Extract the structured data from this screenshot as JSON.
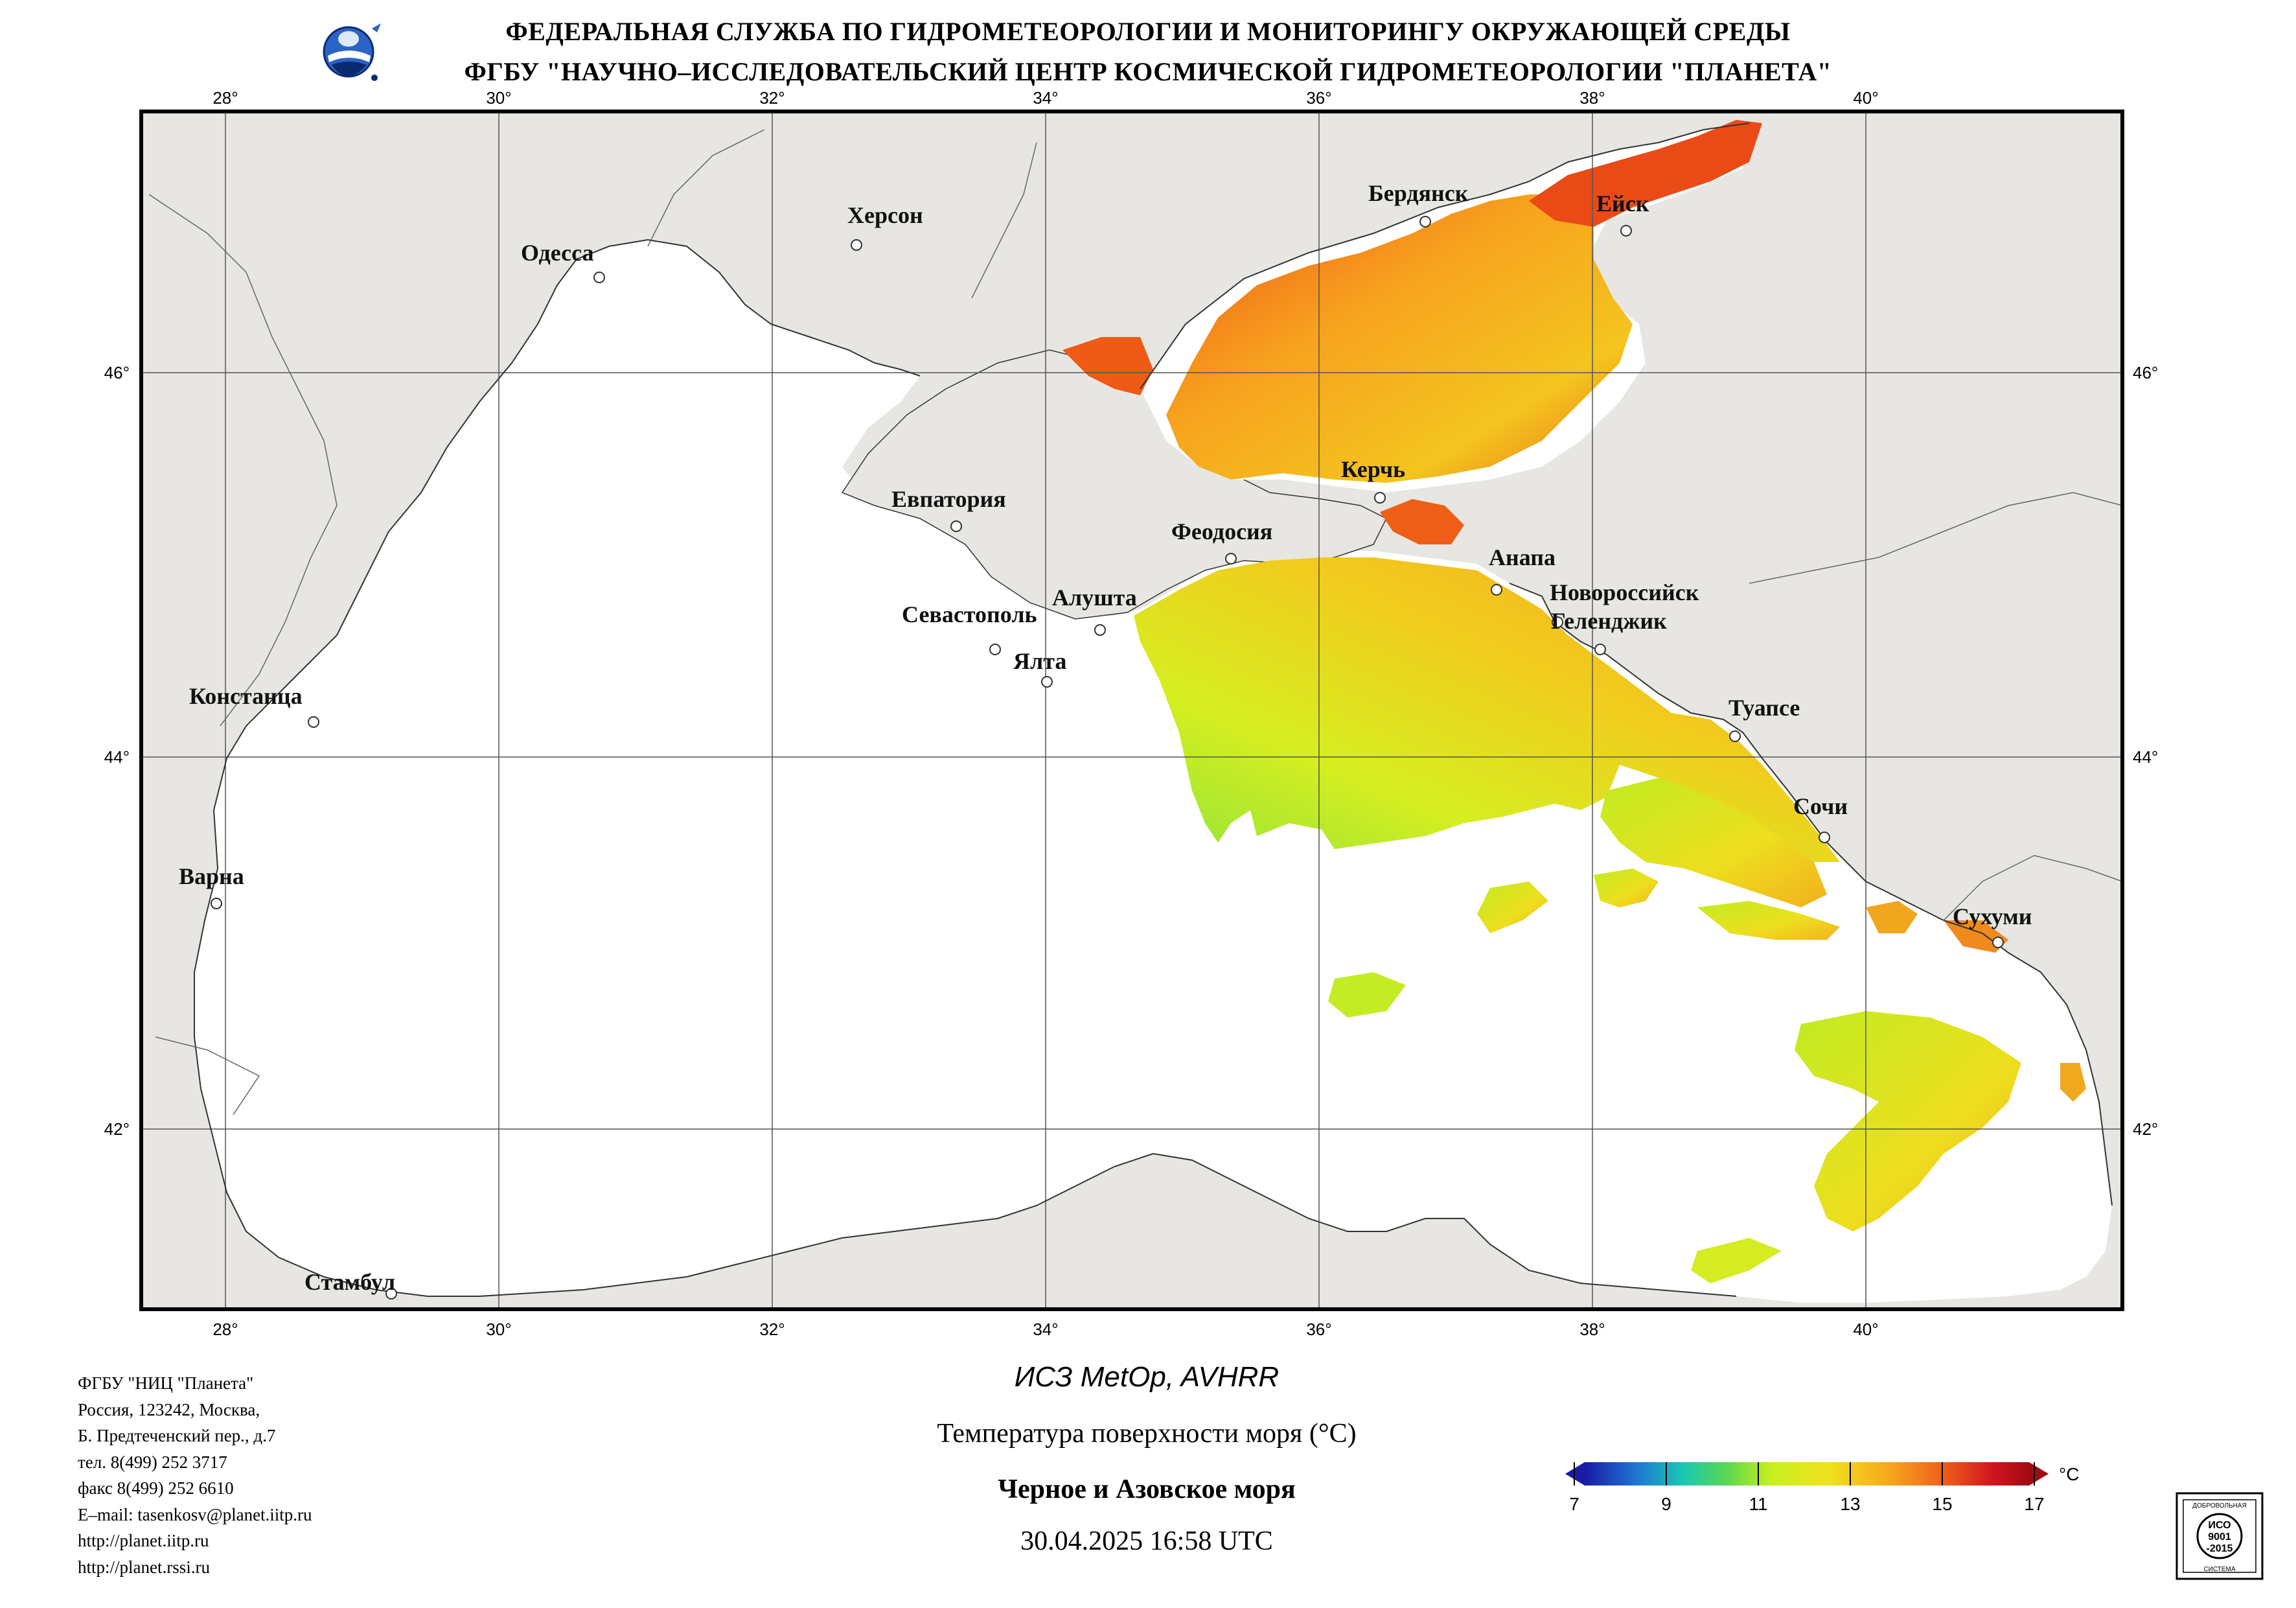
{
  "header": {
    "line1": "ФЕДЕРАЛЬНАЯ СЛУЖБА ПО ГИДРОМЕТЕОРОЛОГИИ И МОНИТОРИНГУ ОКРУЖАЮЩЕЙ СРЕДЫ",
    "line2": "ФГБУ \"НАУЧНО–ИССЛЕДОВАТЕЛЬСКИЙ ЦЕНТР КОСМИЧЕСКОЙ ГИДРОМЕТЕОРОЛОГИИ \"ПЛАНЕТА\""
  },
  "map": {
    "lon_ticks_top": [
      "28°",
      "30°",
      "32°",
      "34°",
      "36°",
      "38°",
      "40°"
    ],
    "lon_ticks_bottom": [
      "28°",
      "30°",
      "32°",
      "34°",
      "36°",
      "38°",
      "40°"
    ],
    "lat_ticks_left": [
      "46°",
      "44°",
      "42°"
    ],
    "lat_ticks_right": [
      "46°",
      "44°",
      "42°"
    ],
    "colors": {
      "land": "#e8e6e2",
      "sea": "#ffffff",
      "border": "#000000",
      "grid": "#555555"
    },
    "cities": [
      {
        "name": "Херсон"
      },
      {
        "name": "Одесса"
      },
      {
        "name": "Бердянск"
      },
      {
        "name": "Ейск"
      },
      {
        "name": "Керчь"
      },
      {
        "name": "Евпатория"
      },
      {
        "name": "Феодосия"
      },
      {
        "name": "Анапа"
      },
      {
        "name": "Новороссийск"
      },
      {
        "name": "Геленджик"
      },
      {
        "name": "Севастополь"
      },
      {
        "name": "Алушта"
      },
      {
        "name": "Ялта"
      },
      {
        "name": "Констанца"
      },
      {
        "name": "Туапсе"
      },
      {
        "name": "Сочи"
      },
      {
        "name": "Варна"
      },
      {
        "name": "Сухуми"
      },
      {
        "name": "Стамбул"
      }
    ]
  },
  "footer": {
    "org_lines": [
      "ФГБУ \"НИЦ \"Планета\"",
      "Россия, 123242, Москва,",
      "Б. Предтеченский пер., д.7",
      "тел. 8(499) 252 3717",
      "факс 8(499) 252 6610",
      "E–mail: tasenkosv@planet.iitp.ru",
      "http://planet.iitp.ru",
      "http://planet.rssi.ru"
    ],
    "satellite": "ИСЗ MetOp, AVHRR",
    "parameter": "Температура поверхности моря (°С)",
    "region": "Черное и Азовское моря",
    "datetime": "30.04.2025 16:58 UTC"
  },
  "colorbar": {
    "unit": "°C",
    "ticks": [
      "7",
      "9",
      "11",
      "13",
      "15",
      "17"
    ],
    "min": 7,
    "max": 17,
    "colors": [
      "#1a1aa8",
      "#1e78d2",
      "#19c8b4",
      "#5ad750",
      "#c8f01e",
      "#f0e11e",
      "#f7aa1e",
      "#ef6419",
      "#d2141e",
      "#a00a14"
    ]
  },
  "iso_badge": {
    "top": "ДОБРОВОЛЬНАЯ",
    "main": "ИСО",
    "line2": "9001",
    "line3": "-2015",
    "bottom": "СИСТЕМА"
  }
}
